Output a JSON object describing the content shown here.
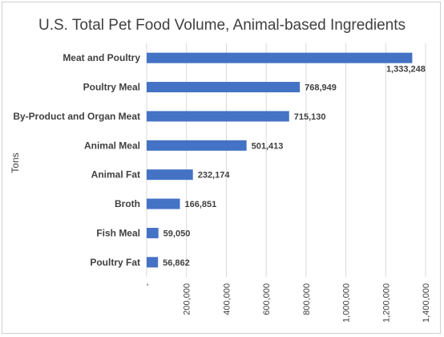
{
  "chart_data": {
    "type": "bar",
    "orientation": "horizontal",
    "title": "U.S. Total Pet Food Volume, Animal-based Ingredients",
    "ylabel": "Tons",
    "xlabel": "",
    "categories": [
      "Meat and Poultry",
      "Poultry Meal",
      "By-Product and Organ Meat",
      "Animal Meal",
      "Animal Fat",
      "Broth",
      "Fish Meal",
      "Poultry Fat"
    ],
    "values": [
      1333248,
      768949,
      715130,
      501413,
      232174,
      166851,
      59050,
      56862
    ],
    "value_labels": [
      "1,333,248",
      "768,949",
      "715,130",
      "501,413",
      "232,174",
      "166,851",
      "59,050",
      "56,862"
    ],
    "xlim": [
      0,
      1400000
    ],
    "ticks": [
      0,
      200000,
      400000,
      600000,
      800000,
      1000000,
      1200000,
      1400000
    ],
    "tick_labels": [
      "-",
      "200,000",
      "400,000",
      "600,000",
      "800,000",
      "1,000,000",
      "1,200,000",
      "1,400,000"
    ],
    "grid": "vertical",
    "legend": "none",
    "bar_color": "#4472c4"
  }
}
